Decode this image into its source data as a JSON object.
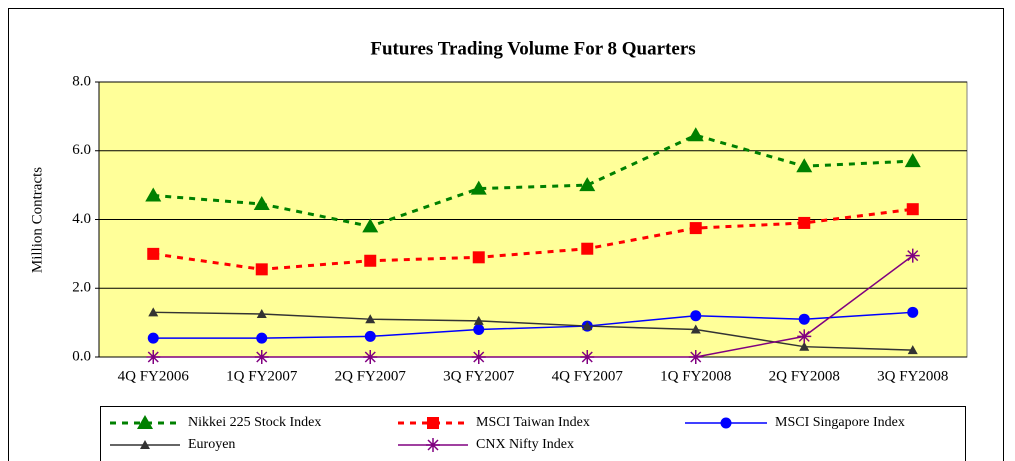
{
  "chart_data": {
    "type": "line",
    "title": "Futures Trading Volume For 8 Quarters",
    "y_label": "Million Contracts",
    "categories": [
      "4Q FY2006",
      "1Q FY2007",
      "2Q FY2007",
      "3Q FY2007",
      "4Q FY2007",
      "1Q FY2008",
      "2Q FY2008",
      "3Q FY2008"
    ],
    "ylim": [
      0,
      8
    ],
    "yticks": [
      {
        "value": 0,
        "label": "0.0"
      },
      {
        "value": 2,
        "label": "2.0"
      },
      {
        "value": 4,
        "label": "4.0"
      },
      {
        "value": 6,
        "label": "6.0"
      },
      {
        "value": 8,
        "label": "8.0"
      }
    ],
    "grid": true,
    "legend": "bottom",
    "series": [
      {
        "name": "Nikkei 225 Stock Index",
        "color": "#008000",
        "marker": "triangle",
        "dashed": true,
        "values": [
          4.7,
          4.45,
          3.8,
          4.9,
          5.0,
          6.45,
          5.55,
          5.7
        ]
      },
      {
        "name": "MSCI Taiwan Index",
        "color": "#ff0000",
        "marker": "square",
        "dashed": true,
        "values": [
          3.0,
          2.55,
          2.8,
          2.9,
          3.15,
          3.75,
          3.9,
          4.3
        ]
      },
      {
        "name": "MSCI Singapore Index",
        "color": "#0000ff",
        "marker": "circle",
        "dashed": false,
        "values": [
          0.55,
          0.55,
          0.6,
          0.8,
          0.9,
          1.2,
          1.1,
          1.3
        ]
      },
      {
        "name": "Euroyen",
        "color": "#333333",
        "marker": "small-triangle",
        "dashed": false,
        "values": [
          1.3,
          1.25,
          1.1,
          1.05,
          0.9,
          0.8,
          0.3,
          0.2
        ]
      },
      {
        "name": "CNX Nifty Index",
        "color": "#800080",
        "marker": "asterisk",
        "dashed": false,
        "values": [
          0,
          0,
          0,
          0,
          0,
          0,
          0.6,
          2.95
        ]
      }
    ]
  }
}
